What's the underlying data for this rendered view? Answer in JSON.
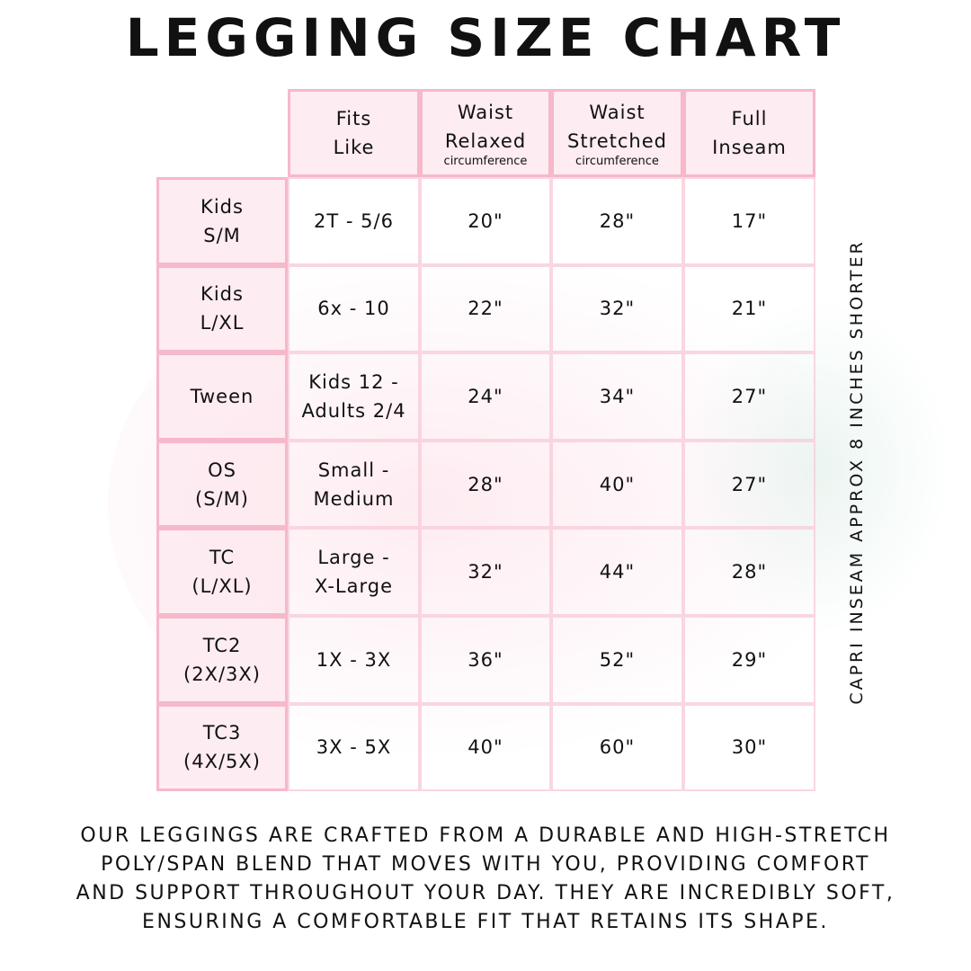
{
  "title": "LEGGING SIZE CHART",
  "headers": [
    {
      "line1": "Fits",
      "line2": "Like",
      "sub": ""
    },
    {
      "line1": "Waist",
      "line2": "Relaxed",
      "sub": "circumference"
    },
    {
      "line1": "Waist",
      "line2": "Stretched",
      "sub": "circumference"
    },
    {
      "line1": "Full",
      "line2": "Inseam",
      "sub": ""
    }
  ],
  "rows": [
    {
      "size": [
        "Kids",
        "S/M"
      ],
      "fits": [
        "2T - 5/6"
      ],
      "relaxed": "20\"",
      "stretched": "28\"",
      "inseam": "17\""
    },
    {
      "size": [
        "Kids",
        "L/XL"
      ],
      "fits": [
        "6x - 10"
      ],
      "relaxed": "22\"",
      "stretched": "32\"",
      "inseam": "21\""
    },
    {
      "size": [
        "Tween"
      ],
      "fits": [
        "Kids 12 -",
        "Adults 2/4"
      ],
      "relaxed": "24\"",
      "stretched": "34\"",
      "inseam": "27\""
    },
    {
      "size": [
        "OS",
        "(S/M)"
      ],
      "fits": [
        "Small -",
        "Medium"
      ],
      "relaxed": "28\"",
      "stretched": "40\"",
      "inseam": "27\""
    },
    {
      "size": [
        "TC",
        "(L/XL)"
      ],
      "fits": [
        "Large -",
        "X-Large"
      ],
      "relaxed": "32\"",
      "stretched": "44\"",
      "inseam": "28\""
    },
    {
      "size": [
        "TC2",
        "(2X/3X)"
      ],
      "fits": [
        "1X - 3X"
      ],
      "relaxed": "36\"",
      "stretched": "52\"",
      "inseam": "29\""
    },
    {
      "size": [
        "TC3",
        "(4X/5X)"
      ],
      "fits": [
        "3X - 5X"
      ],
      "relaxed": "40\"",
      "stretched": "60\"",
      "inseam": "30\""
    }
  ],
  "side_note": "CAPRI INSEAM APPROX 8 INCHES SHORTER",
  "footer": [
    "Our leggings are crafted from a durable and high-stretch",
    "poly/span blend that moves with you, providing comfort",
    "and support throughout your day. They are incredibly soft,",
    "ensuring a comfortable fit that retains its shape."
  ],
  "colors": {
    "border": "#f6b8ca",
    "header_fill": "#fdeaf0"
  }
}
